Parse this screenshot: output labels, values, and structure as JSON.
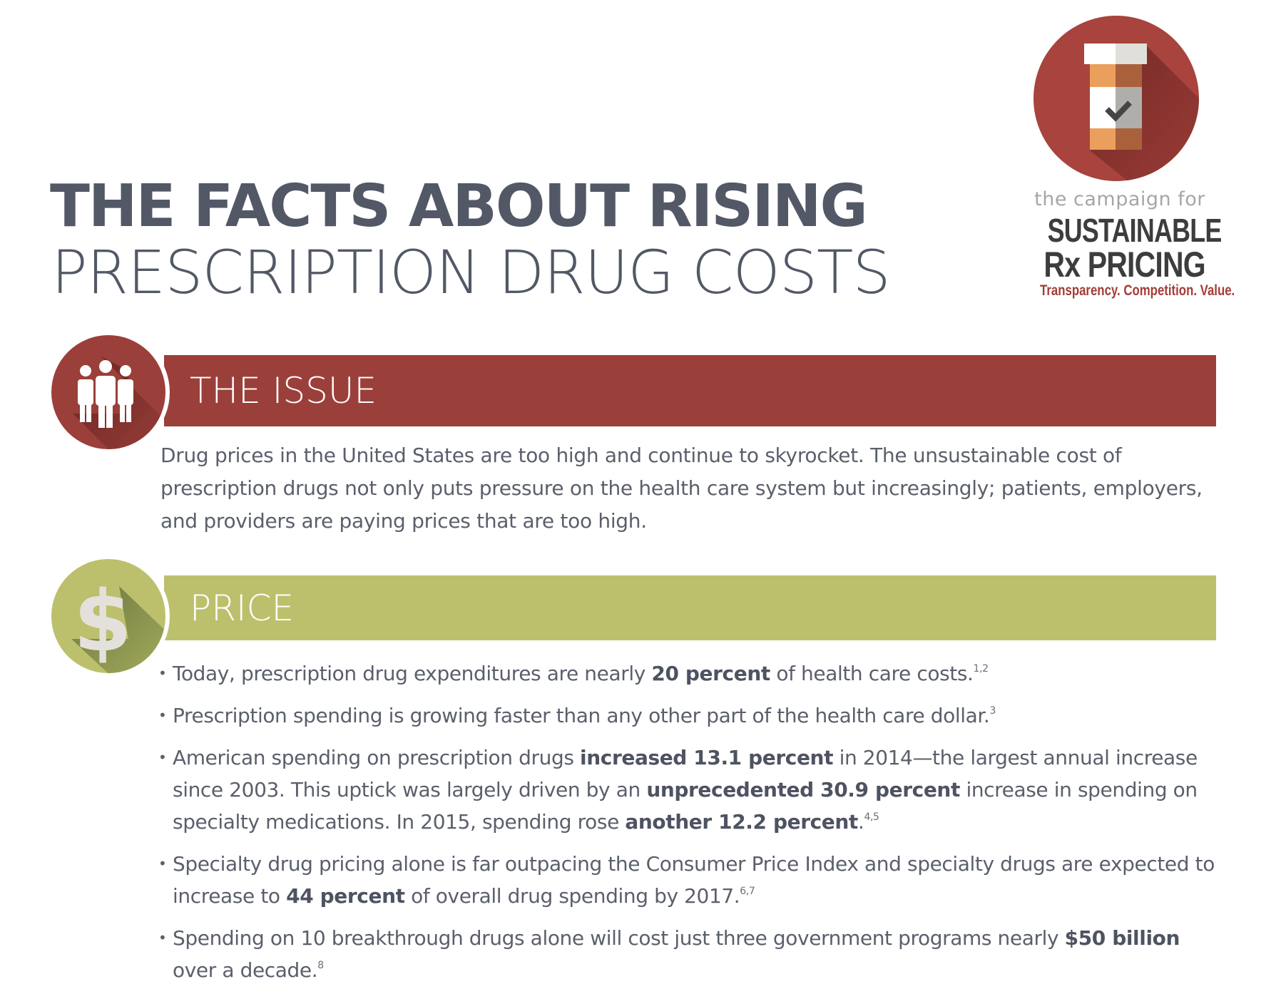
{
  "header": {
    "title_line1": "THE FACTS ABOUT RISING",
    "title_line2": "PRESCRIPTION DRUG COSTS"
  },
  "logo": {
    "icon": "pill-bottle-check-icon",
    "subtitle": "the campaign for",
    "line1": "SUSTAINABLE",
    "line2": "Rx PRICING",
    "tagline": "Transparency. Competition. Value.",
    "colors": {
      "circle": "#a8433d",
      "tagline": "#a33e37",
      "wordmark": "#3d3d3d"
    }
  },
  "sections": {
    "issue": {
      "title": "THE ISSUE",
      "icon": "people-group-icon",
      "color": "#9b3f3a",
      "paragraph": "Drug prices in the United States are too high and continue to skyrocket. The unsustainable cost of prescription drugs not only puts pressure on the health care system but increasingly; patients, employers, and providers are paying prices that are too high."
    },
    "price": {
      "title": "PRICE",
      "icon": "dollar-sign-icon",
      "color": "#bcc06d",
      "bullets": [
        {
          "parts": [
            {
              "t": "Today, prescription drug expenditures are nearly "
            },
            {
              "t": "20 percent",
              "b": true
            },
            {
              "t": " of health care costs."
            }
          ],
          "sup": "1,2"
        },
        {
          "parts": [
            {
              "t": "Prescription spending is growing faster than any other part of the health care dollar."
            }
          ],
          "sup": "3"
        },
        {
          "parts": [
            {
              "t": "American spending on prescription drugs "
            },
            {
              "t": "increased 13.1 percent",
              "b": true
            },
            {
              "t": " in 2014—the largest annual increase since 2003. This uptick was largely driven by an "
            },
            {
              "t": "unprecedented 30.9 percent",
              "b": true
            },
            {
              "t": " increase in spending on specialty medications. In 2015, spending rose "
            },
            {
              "t": "another 12.2 percent",
              "b": true
            },
            {
              "t": "."
            }
          ],
          "sup": "4,5"
        },
        {
          "parts": [
            {
              "t": "Specialty drug pricing alone is far outpacing the Consumer Price Index and specialty drugs are expected to increase to "
            },
            {
              "t": "44 percent",
              "b": true
            },
            {
              "t": " of overall drug spending by 2017."
            }
          ],
          "sup": "6,7"
        },
        {
          "parts": [
            {
              "t": "Spending on 10 breakthrough drugs alone will cost just three government programs nearly "
            },
            {
              "t": "$50 billion",
              "b": true
            },
            {
              "t": " over a decade."
            }
          ],
          "sup": "8"
        }
      ]
    }
  }
}
